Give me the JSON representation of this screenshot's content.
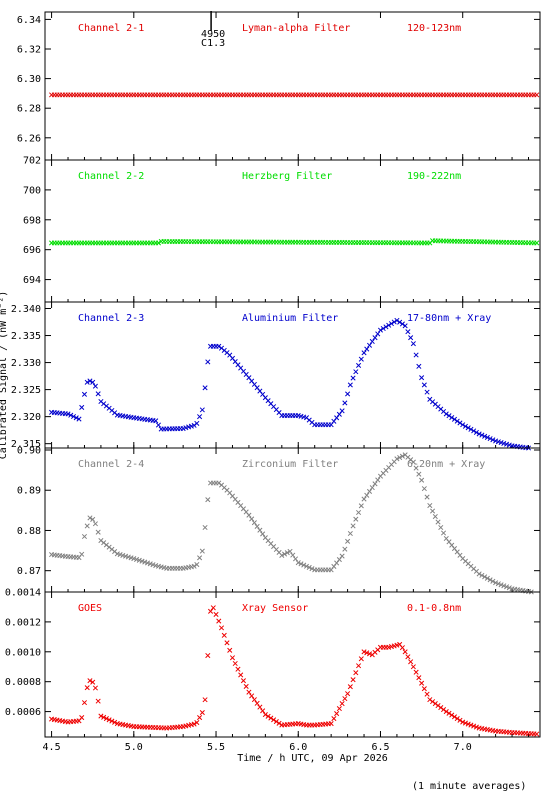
{
  "chart_data": [
    {
      "type": "scatter",
      "label": "Channel 2-1",
      "filter": "Lyman-alpha Filter",
      "band": "120-123nm",
      "color": "#e00000",
      "ylim": [
        6.245,
        6.345
      ],
      "yticks": [
        6.26,
        6.28,
        6.3,
        6.32,
        6.34
      ],
      "ydec": 2,
      "annotation": {
        "x": 5.47,
        "lines": [
          "4950",
          "C1.3"
        ]
      },
      "series": [
        {
          "x": [
            4.5,
            7.45
          ],
          "y": [
            6.289,
            6.289
          ],
          "sampling": "1-minute"
        }
      ]
    },
    {
      "type": "scatter",
      "label": "Channel 2-2",
      "filter": "Herzberg Filter",
      "band": "190-222nm",
      "color": "#00dd00",
      "ylim": [
        692.5,
        702.0
      ],
      "yticks": [
        694,
        696,
        698,
        700,
        702
      ],
      "ydec": 0,
      "series": [
        {
          "x": [
            4.5,
            5.15,
            5.16,
            6.8,
            6.81,
            7.45
          ],
          "y": [
            696.45,
            696.45,
            696.55,
            696.45,
            696.6,
            696.45
          ]
        }
      ]
    },
    {
      "type": "scatter",
      "label": "Channel 2-3",
      "filter": "Aluminium Filter",
      "band": "17-80nm + Xray",
      "color": "#0000cc",
      "ylim": [
        2.3142,
        2.3412
      ],
      "yticks": [
        2.315,
        2.32,
        2.325,
        2.33,
        2.335,
        2.34
      ],
      "ydec": 3,
      "series": [
        {
          "x": [
            4.5,
            4.6,
            4.67,
            4.69,
            4.72,
            4.76,
            4.8,
            4.9,
            5.0,
            5.14,
            5.16,
            5.3,
            5.38,
            5.42,
            5.46,
            5.52,
            5.58,
            5.7,
            5.8,
            5.9,
            6.0,
            6.05,
            6.1,
            6.2,
            6.27,
            6.32,
            6.4,
            6.5,
            6.6,
            6.65,
            6.7,
            6.75,
            6.8,
            6.9,
            7.0,
            7.1,
            7.2,
            7.3,
            7.45
          ],
          "y": [
            2.3208,
            2.3205,
            2.3195,
            2.3228,
            2.3268,
            2.3262,
            2.3228,
            2.3203,
            2.3198,
            2.3192,
            2.3177,
            2.3178,
            2.3185,
            2.3215,
            2.333,
            2.333,
            2.3315,
            2.3272,
            2.3235,
            2.3202,
            2.3202,
            2.3198,
            2.3185,
            2.3185,
            2.3212,
            2.3262,
            2.3318,
            2.336,
            2.3378,
            2.3368,
            2.3335,
            2.3272,
            2.3232,
            2.3205,
            2.3185,
            2.3168,
            2.3155,
            2.3146,
            2.314
          ]
        }
      ]
    },
    {
      "type": "scatter",
      "label": "Channel 2-4",
      "filter": "Zirconium Filter",
      "band": "6-20nm + Xray",
      "color": "#808080",
      "ylim": [
        0.8647,
        0.9005
      ],
      "yticks": [
        0.87,
        0.88,
        0.89,
        0.9
      ],
      "ydec": 2,
      "series": [
        {
          "x": [
            4.5,
            4.6,
            4.68,
            4.7,
            4.73,
            4.76,
            4.8,
            4.9,
            5.0,
            5.14,
            5.2,
            5.3,
            5.38,
            5.42,
            5.46,
            5.52,
            5.58,
            5.7,
            5.8,
            5.9,
            5.95,
            6.0,
            6.1,
            6.2,
            6.27,
            6.33,
            6.4,
            6.5,
            6.6,
            6.65,
            6.7,
            6.75,
            6.8,
            6.9,
            7.0,
            7.1,
            7.2,
            7.3,
            7.45
          ],
          "y": [
            0.874,
            0.8735,
            0.8732,
            0.8785,
            0.8832,
            0.8825,
            0.8775,
            0.8742,
            0.873,
            0.8712,
            0.8706,
            0.8706,
            0.8712,
            0.8752,
            0.8918,
            0.8918,
            0.8895,
            0.8838,
            0.8782,
            0.8738,
            0.8748,
            0.872,
            0.8702,
            0.8702,
            0.8738,
            0.8808,
            0.8878,
            0.8935,
            0.8978,
            0.8988,
            0.897,
            0.8925,
            0.8862,
            0.878,
            0.873,
            0.8692,
            0.867,
            0.8655,
            0.8645
          ]
        }
      ]
    },
    {
      "type": "scatter",
      "label": "GOES",
      "filter": "Xray Sensor",
      "band": "0.1-0.8nm",
      "color": "#ee0000",
      "ylim": [
        0.00043,
        0.0014
      ],
      "yticks": [
        0.0006,
        0.0008,
        0.001,
        0.0012,
        0.0014
      ],
      "ydec": 4,
      "series": [
        {
          "x": [
            4.5,
            4.6,
            4.68,
            4.72,
            4.74,
            4.77,
            4.8,
            4.9,
            5.0,
            5.2,
            5.3,
            5.38,
            5.43,
            5.47,
            5.53,
            5.6,
            5.7,
            5.8,
            5.9,
            6.0,
            6.05,
            6.1,
            6.2,
            6.3,
            6.4,
            6.45,
            6.5,
            6.55,
            6.62,
            6.65,
            6.7,
            6.8,
            6.9,
            7.0,
            7.1,
            7.2,
            7.3,
            7.45
          ],
          "y": [
            0.00055,
            0.00053,
            0.00054,
            0.00078,
            0.00082,
            0.00075,
            0.00057,
            0.00052,
            0.0005,
            0.00049,
            0.0005,
            0.00052,
            0.00062,
            0.00133,
            0.00117,
            0.00096,
            0.00073,
            0.00058,
            0.00051,
            0.00052,
            0.00051,
            0.00051,
            0.00052,
            0.00072,
            0.001,
            0.00098,
            0.00103,
            0.00103,
            0.00105,
            0.001,
            0.0009,
            0.00068,
            0.0006,
            0.00053,
            0.00049,
            0.00047,
            0.00046,
            0.00045
          ]
        }
      ]
    }
  ],
  "x_axis": {
    "xlim": [
      4.46,
      7.47
    ],
    "ticks": [
      4.5,
      5.0,
      5.5,
      6.0,
      6.5,
      7.0
    ],
    "tick_labels": [
      "4.5",
      "5.0",
      "5.5",
      "6.0",
      "6.5",
      "7.0"
    ],
    "label": "Time / h UTC, 09 Apr 2026"
  },
  "y_axis_label": "Calibrated Signal / (nW m⁻²)",
  "footnote": "(1 minute averages)"
}
